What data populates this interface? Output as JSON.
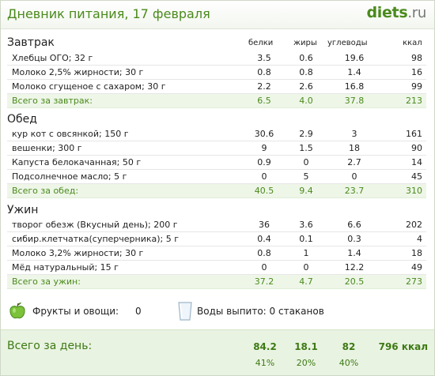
{
  "header": {
    "title": "Дневник питания, 17 февраля",
    "logo_main": "diets",
    "logo_tld": ".ru"
  },
  "columns": {
    "protein": "белки",
    "fat": "жиры",
    "carbs": "углеводы",
    "kcal": "ккал"
  },
  "meals": [
    {
      "title": "Завтрак",
      "items": [
        {
          "name": "Хлебцы ОГО; 32 г",
          "p": "3.5",
          "f": "0.6",
          "c": "19.6",
          "k": "98"
        },
        {
          "name": "Молоко 2,5% жирности; 30 г",
          "p": "0.8",
          "f": "0.8",
          "c": "1.4",
          "k": "16"
        },
        {
          "name": "Молоко сгущеное с сахаром; 30 г",
          "p": "2.2",
          "f": "2.6",
          "c": "16.8",
          "k": "99"
        }
      ],
      "total": {
        "name": "Всего за завтрак:",
        "p": "6.5",
        "f": "4.0",
        "c": "37.8",
        "k": "213"
      }
    },
    {
      "title": "Обед",
      "items": [
        {
          "name": "кур кот с овсянкой; 150 г",
          "p": "30.6",
          "f": "2.9",
          "c": "3",
          "k": "161"
        },
        {
          "name": "вешенки; 300 г",
          "p": "9",
          "f": "1.5",
          "c": "18",
          "k": "90"
        },
        {
          "name": "Капуста белокачанная; 50 г",
          "p": "0.9",
          "f": "0",
          "c": "2.7",
          "k": "14"
        },
        {
          "name": "Подсолнечное масло; 5 г",
          "p": "0",
          "f": "5",
          "c": "0",
          "k": "45"
        }
      ],
      "total": {
        "name": "Всего за обед:",
        "p": "40.5",
        "f": "9.4",
        "c": "23.7",
        "k": "310"
      }
    },
    {
      "title": "Ужин",
      "items": [
        {
          "name": "творог обезж (Вкусный день); 200 г",
          "p": "36",
          "f": "3.6",
          "c": "6.6",
          "k": "202"
        },
        {
          "name": "сибир.клетчатка(суперчерника); 5 г",
          "p": "0.4",
          "f": "0.1",
          "c": "0.3",
          "k": "4"
        },
        {
          "name": "Молоко 3,2% жирности; 30 г",
          "p": "0.8",
          "f": "1",
          "c": "1.4",
          "k": "18"
        },
        {
          "name": "Мёд натуральный; 15 г",
          "p": "0",
          "f": "0",
          "c": "12.2",
          "k": "49"
        }
      ],
      "total": {
        "name": "Всего за ужин:",
        "p": "37.2",
        "f": "4.7",
        "c": "20.5",
        "k": "273"
      }
    }
  ],
  "extras": {
    "fruits_label": "Фрукты и овощи:",
    "fruits_value": "0",
    "water_label": "Воды выпито: 0 стаканов"
  },
  "day_total": {
    "label": "Всего за день:",
    "p": "84.2",
    "f": "18.1",
    "c": "82",
    "k": "796 ккал",
    "p_pct": "41%",
    "f_pct": "20%",
    "c_pct": "40%"
  },
  "colors": {
    "accent": "#4a8a1c",
    "total_row_bg": "#eef6e8",
    "footer_bg": "#e9f3e2"
  }
}
